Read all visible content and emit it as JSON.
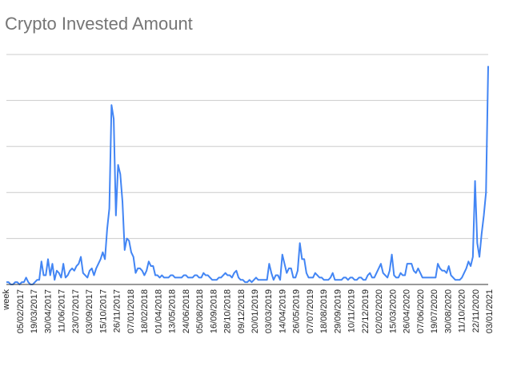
{
  "chart_data": {
    "type": "line",
    "title": "Crypto Invested Amount",
    "xlabel": "week",
    "ylabel": "",
    "grid": true,
    "y_axis_labels_shown": false,
    "ylim": [
      0,
      100
    ],
    "colors": {
      "line": "#4285f4",
      "grid": "#cccccc",
      "axis": "#333333",
      "title": "#757575"
    },
    "tick_labels": [
      "05/02/2017",
      "19/03/2017",
      "30/04/2017",
      "11/06/2017",
      "23/07/2017",
      "03/09/2017",
      "15/10/2017",
      "26/11/2017",
      "07/01/2018",
      "18/02/2018",
      "01/04/2018",
      "13/05/2018",
      "24/06/2018",
      "05/08/2018",
      "16/09/2018",
      "28/10/2018",
      "09/12/2018",
      "20/01/2019",
      "03/03/2019",
      "14/04/2019",
      "26/05/2019",
      "07/07/2019",
      "18/08/2019",
      "29/09/2019",
      "10/11/2019",
      "22/12/2019",
      "02/02/2020",
      "15/03/2020",
      "26/04/2020",
      "07/06/2020",
      "19/07/2020",
      "30/08/2020",
      "11/10/2020",
      "22/11/2020",
      "03/01/2021"
    ],
    "series": [
      {
        "values": [
          1,
          1,
          0,
          0,
          1,
          1,
          0,
          1,
          1,
          3,
          1,
          0,
          0,
          1,
          2,
          2,
          10,
          4,
          4,
          11,
          4,
          9,
          2,
          6,
          5,
          3,
          9,
          3,
          4,
          6,
          7,
          6,
          8,
          9,
          12,
          5,
          4,
          3,
          6,
          7,
          4,
          7,
          9,
          11,
          14,
          11,
          24,
          33,
          78,
          72,
          30,
          52,
          48,
          36,
          15,
          20,
          19,
          14,
          12,
          5,
          7,
          7,
          6,
          4,
          6,
          10,
          8,
          8,
          4,
          4,
          3,
          4,
          3,
          3,
          3,
          4,
          4,
          3,
          3,
          3,
          3,
          4,
          4,
          3,
          3,
          3,
          4,
          4,
          3,
          3,
          5,
          4,
          4,
          3,
          2,
          2,
          2,
          3,
          3,
          4,
          5,
          4,
          4,
          3,
          5,
          6,
          3,
          2,
          2,
          1,
          1,
          2,
          1,
          2,
          3,
          2,
          2,
          2,
          2,
          2,
          9,
          5,
          2,
          4,
          4,
          2,
          13,
          9,
          5,
          7,
          7,
          3,
          3,
          6,
          18,
          11,
          11,
          5,
          3,
          3,
          3,
          5,
          4,
          3,
          3,
          2,
          2,
          2,
          3,
          5,
          2,
          2,
          2,
          2,
          3,
          3,
          2,
          3,
          3,
          2,
          2,
          3,
          3,
          2,
          2,
          4,
          5,
          3,
          3,
          5,
          7,
          9,
          5,
          4,
          3,
          6,
          13,
          4,
          3,
          3,
          5,
          4,
          4,
          9,
          9,
          9,
          6,
          5,
          7,
          5,
          3,
          3,
          3,
          3,
          3,
          3,
          3,
          9,
          7,
          6,
          6,
          5,
          8,
          4,
          3,
          2,
          2,
          2,
          3,
          5,
          7,
          10,
          8,
          12,
          45,
          18,
          12,
          22,
          30,
          40,
          95
        ]
      }
    ]
  }
}
